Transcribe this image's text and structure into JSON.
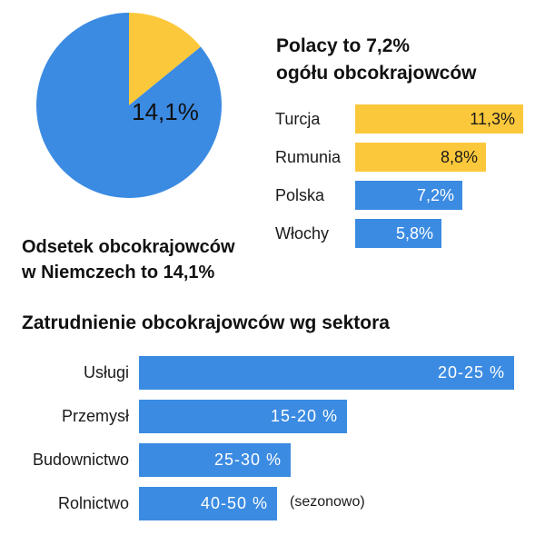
{
  "colors": {
    "blue": "#3b8be2",
    "yellow": "#fcc83b"
  },
  "chart_data": [
    {
      "type": "pie",
      "slices": [
        {
          "label": "14,1%",
          "value": 14.1,
          "color": "#fcc83b"
        },
        {
          "label": "",
          "value": 85.9,
          "color": "#3b8be2"
        }
      ],
      "data_label": "14,1%",
      "caption": [
        "Odsetek obcokrajowców",
        "w Niemczech to 14,1%"
      ]
    },
    {
      "type": "bar",
      "orientation": "horizontal",
      "title": [
        "Polacy to 7,2%",
        "ogółu obcokrajowców"
      ],
      "categories": [
        "Turcja",
        "Rumunia",
        "Polska",
        "Włochy"
      ],
      "values": [
        11.3,
        8.8,
        7.2,
        5.8
      ],
      "value_labels": [
        "11,3%",
        "8,8%",
        "7,2%",
        "5,8%"
      ],
      "bar_colors": [
        "#fcc83b",
        "#fcc83b",
        "#3b8be2",
        "#3b8be2"
      ],
      "xlim": [
        0,
        11.3
      ],
      "xlabel": "",
      "ylabel": ""
    },
    {
      "type": "bar",
      "orientation": "horizontal",
      "title": "Zatrudnienie obcokrajowców wg sektora",
      "categories": [
        "Usługi",
        "Przemysł",
        "Budownictwo",
        "Rolnictwo"
      ],
      "ranges": [
        [
          20,
          25
        ],
        [
          15,
          20
        ],
        [
          25,
          30
        ],
        [
          40,
          50
        ]
      ],
      "value_labels": [
        "20-25 %",
        "15-20 %",
        "25-30 %",
        "40-50 %"
      ],
      "annotations": [
        "",
        "",
        "",
        "(sezonowo)"
      ],
      "xlabel": "",
      "ylabel": ""
    }
  ]
}
